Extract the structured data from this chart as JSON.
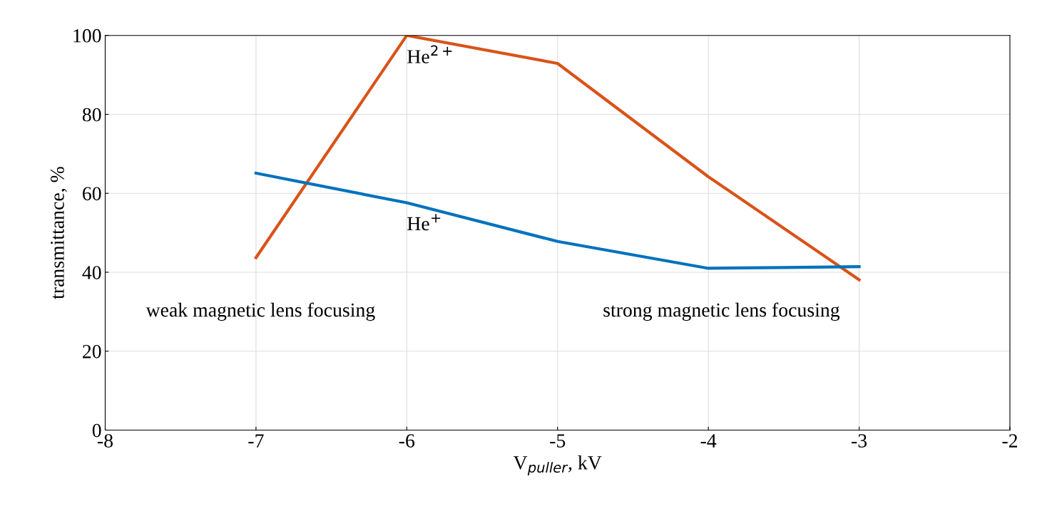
{
  "chart_data": {
    "type": "line",
    "xlabel": "V$_{puller}$, kV",
    "ylabel": "transmittance, %",
    "series": [
      {
        "name": "He$^{2+}$",
        "color": "#d95319",
        "x": [
          -7,
          -6,
          -5,
          -4,
          -3
        ],
        "values": [
          43.7,
          100,
          92.9,
          64.2,
          38.1
        ]
      },
      {
        "name": "He$^{+}$",
        "color": "#0072bd",
        "x": [
          -7,
          -6,
          -5,
          -4,
          -3.5,
          -3
        ],
        "values": [
          65.1,
          57.6,
          47.8,
          41.0,
          41.2,
          41.4
        ]
      }
    ],
    "annotations": [
      "weak magnetic lens focusing",
      "strong magnetic lens focusing"
    ],
    "xlim": [
      -8,
      -2
    ],
    "xticks": [
      -8,
      -7,
      -6,
      -5,
      -4,
      -3,
      -2
    ],
    "ylim": [
      0,
      100
    ],
    "yticks": [
      0,
      20,
      40,
      60,
      80,
      100
    ],
    "grid": true,
    "marker": "none",
    "line_style": "solid"
  }
}
